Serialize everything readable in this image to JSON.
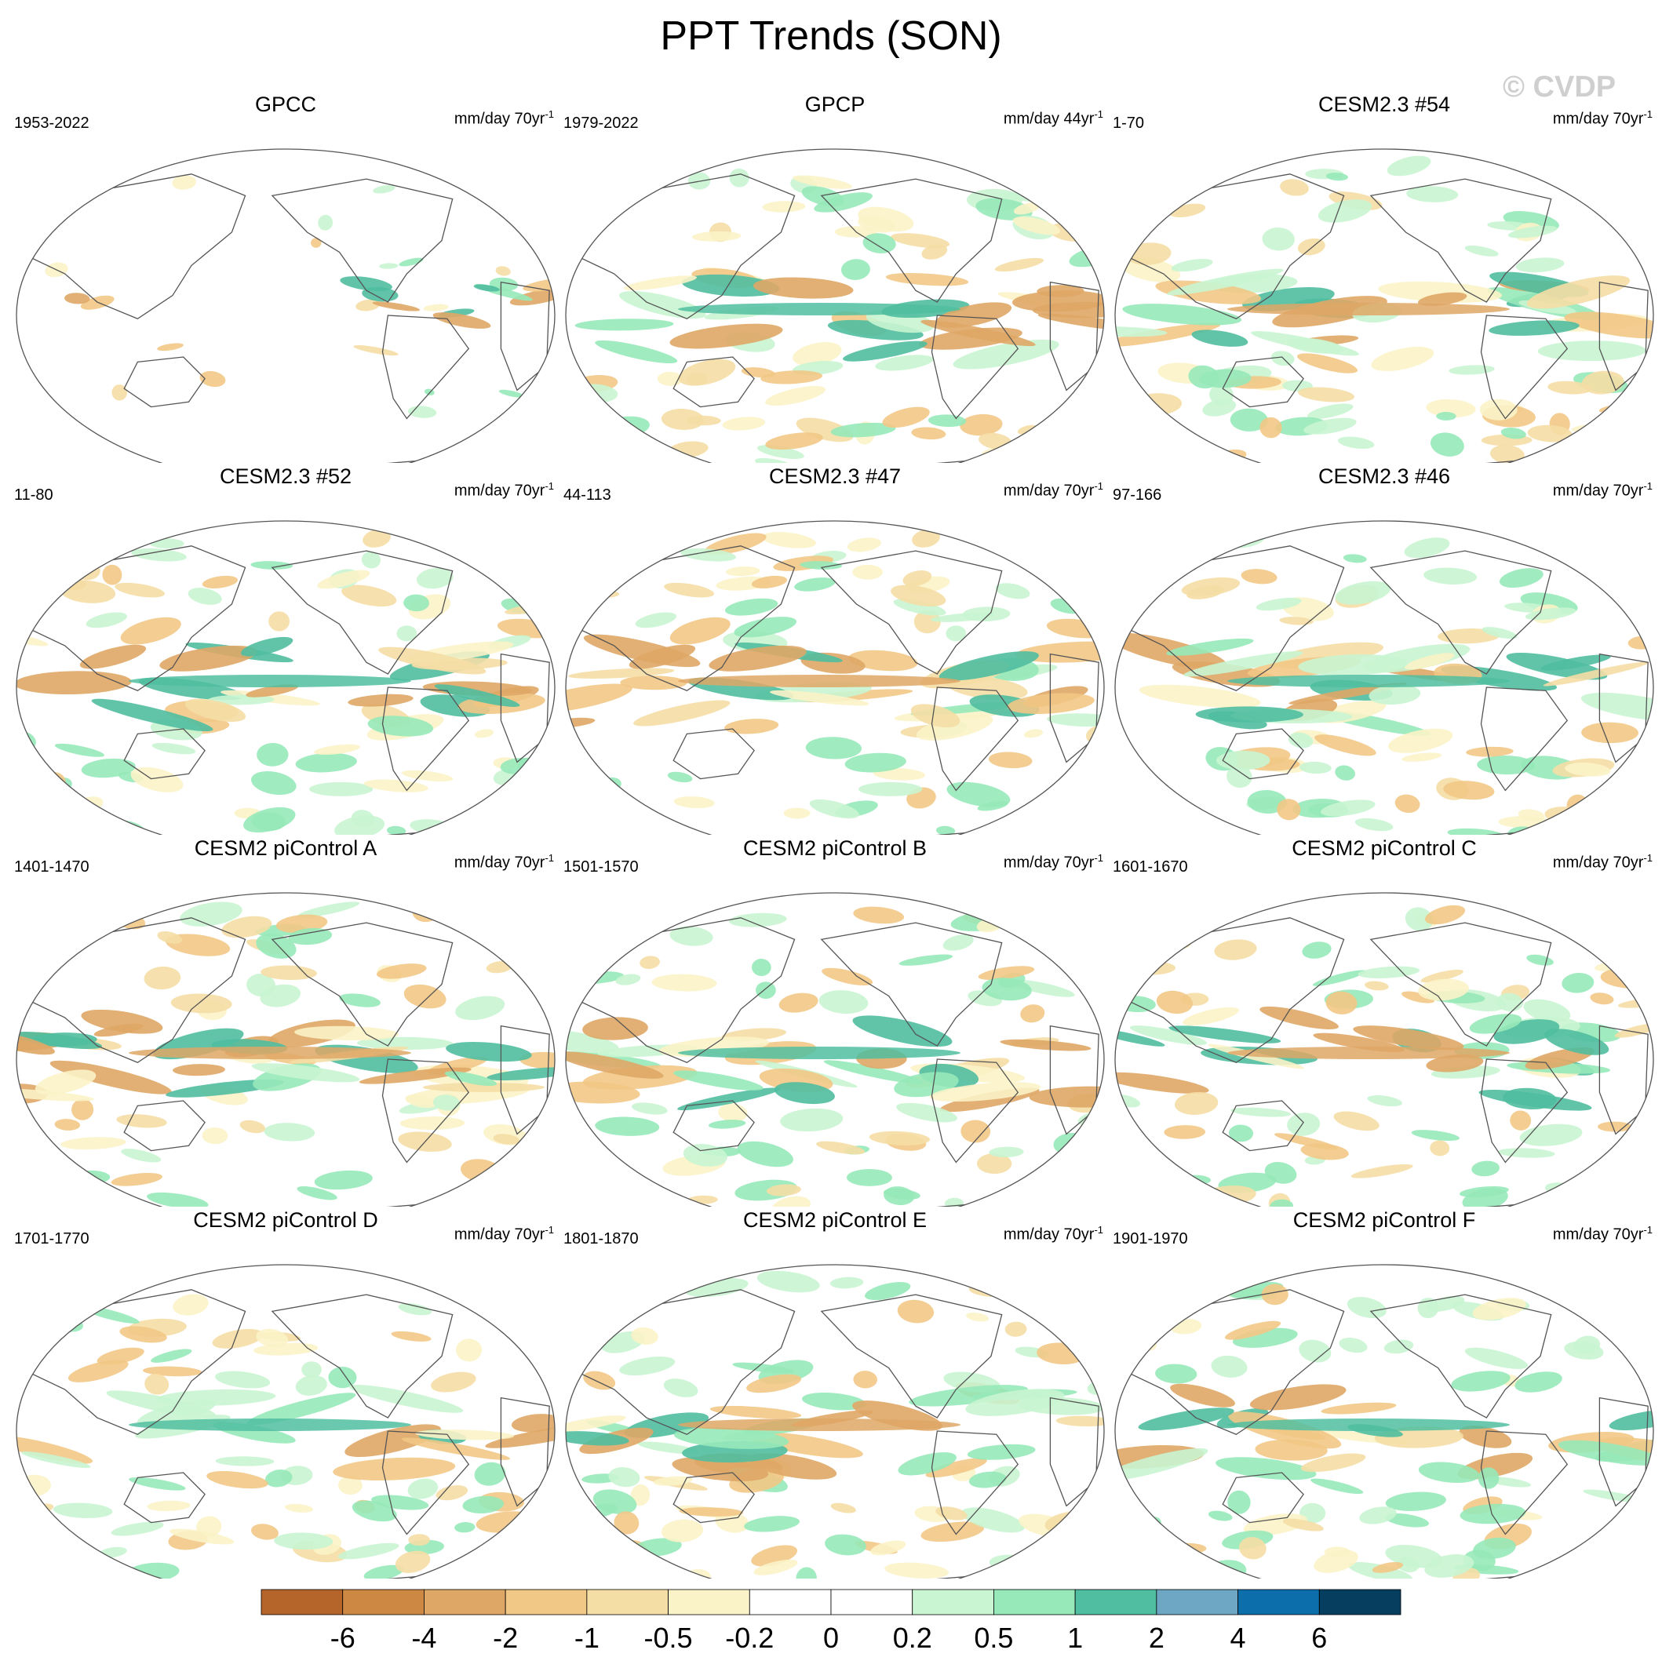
{
  "title": "PPT Trends (SON)",
  "watermark": "© CVDP",
  "panels": [
    {
      "name": "GPCC",
      "period": "1953-2022",
      "units_base": "mm/day 70yr",
      "units_exp": "-1",
      "coverage": "land-only"
    },
    {
      "name": "GPCP",
      "period": "1979-2022",
      "units_base": "mm/day 44yr",
      "units_exp": "-1",
      "coverage": "global"
    },
    {
      "name": "CESM2.3 #54",
      "period": "1-70",
      "units_base": "mm/day 70yr",
      "units_exp": "-1",
      "coverage": "global"
    },
    {
      "name": "CESM2.3 #52",
      "period": "11-80",
      "units_base": "mm/day 70yr",
      "units_exp": "-1",
      "coverage": "global"
    },
    {
      "name": "CESM2.3 #47",
      "period": "44-113",
      "units_base": "mm/day 70yr",
      "units_exp": "-1",
      "coverage": "global"
    },
    {
      "name": "CESM2.3 #46",
      "period": "97-166",
      "units_base": "mm/day 70yr",
      "units_exp": "-1",
      "coverage": "global"
    },
    {
      "name": "CESM2 piControl A",
      "period": "1401-1470",
      "units_base": "mm/day 70yr",
      "units_exp": "-1",
      "coverage": "global"
    },
    {
      "name": "CESM2 piControl B",
      "period": "1501-1570",
      "units_base": "mm/day 70yr",
      "units_exp": "-1",
      "coverage": "global"
    },
    {
      "name": "CESM2 piControl C",
      "period": "1601-1670",
      "units_base": "mm/day 70yr",
      "units_exp": "-1",
      "coverage": "global"
    },
    {
      "name": "CESM2 piControl D",
      "period": "1701-1770",
      "units_base": "mm/day 70yr",
      "units_exp": "-1",
      "coverage": "global"
    },
    {
      "name": "CESM2 piControl E",
      "period": "1801-1870",
      "units_base": "mm/day 70yr",
      "units_exp": "-1",
      "coverage": "global"
    },
    {
      "name": "CESM2 piControl F",
      "period": "1901-1970",
      "units_base": "mm/day 70yr",
      "units_exp": "-1",
      "coverage": "global"
    }
  ],
  "colorbar": {
    "colors": [
      "#b5652a",
      "#cd8844",
      "#dfa766",
      "#f2c886",
      "#f5dea5",
      "#fbf3c8",
      "#ffffff",
      "#ffffff",
      "#c9f5d2",
      "#97e9b9",
      "#50bea0",
      "#6ea7c4",
      "#0c6eaa",
      "#063e60"
    ],
    "labels": [
      "-6",
      "-4",
      "-2",
      "-1",
      "-0.5",
      "-0.2",
      "0",
      "0.2",
      "0.5",
      "1",
      "2",
      "4",
      "6"
    ]
  }
}
